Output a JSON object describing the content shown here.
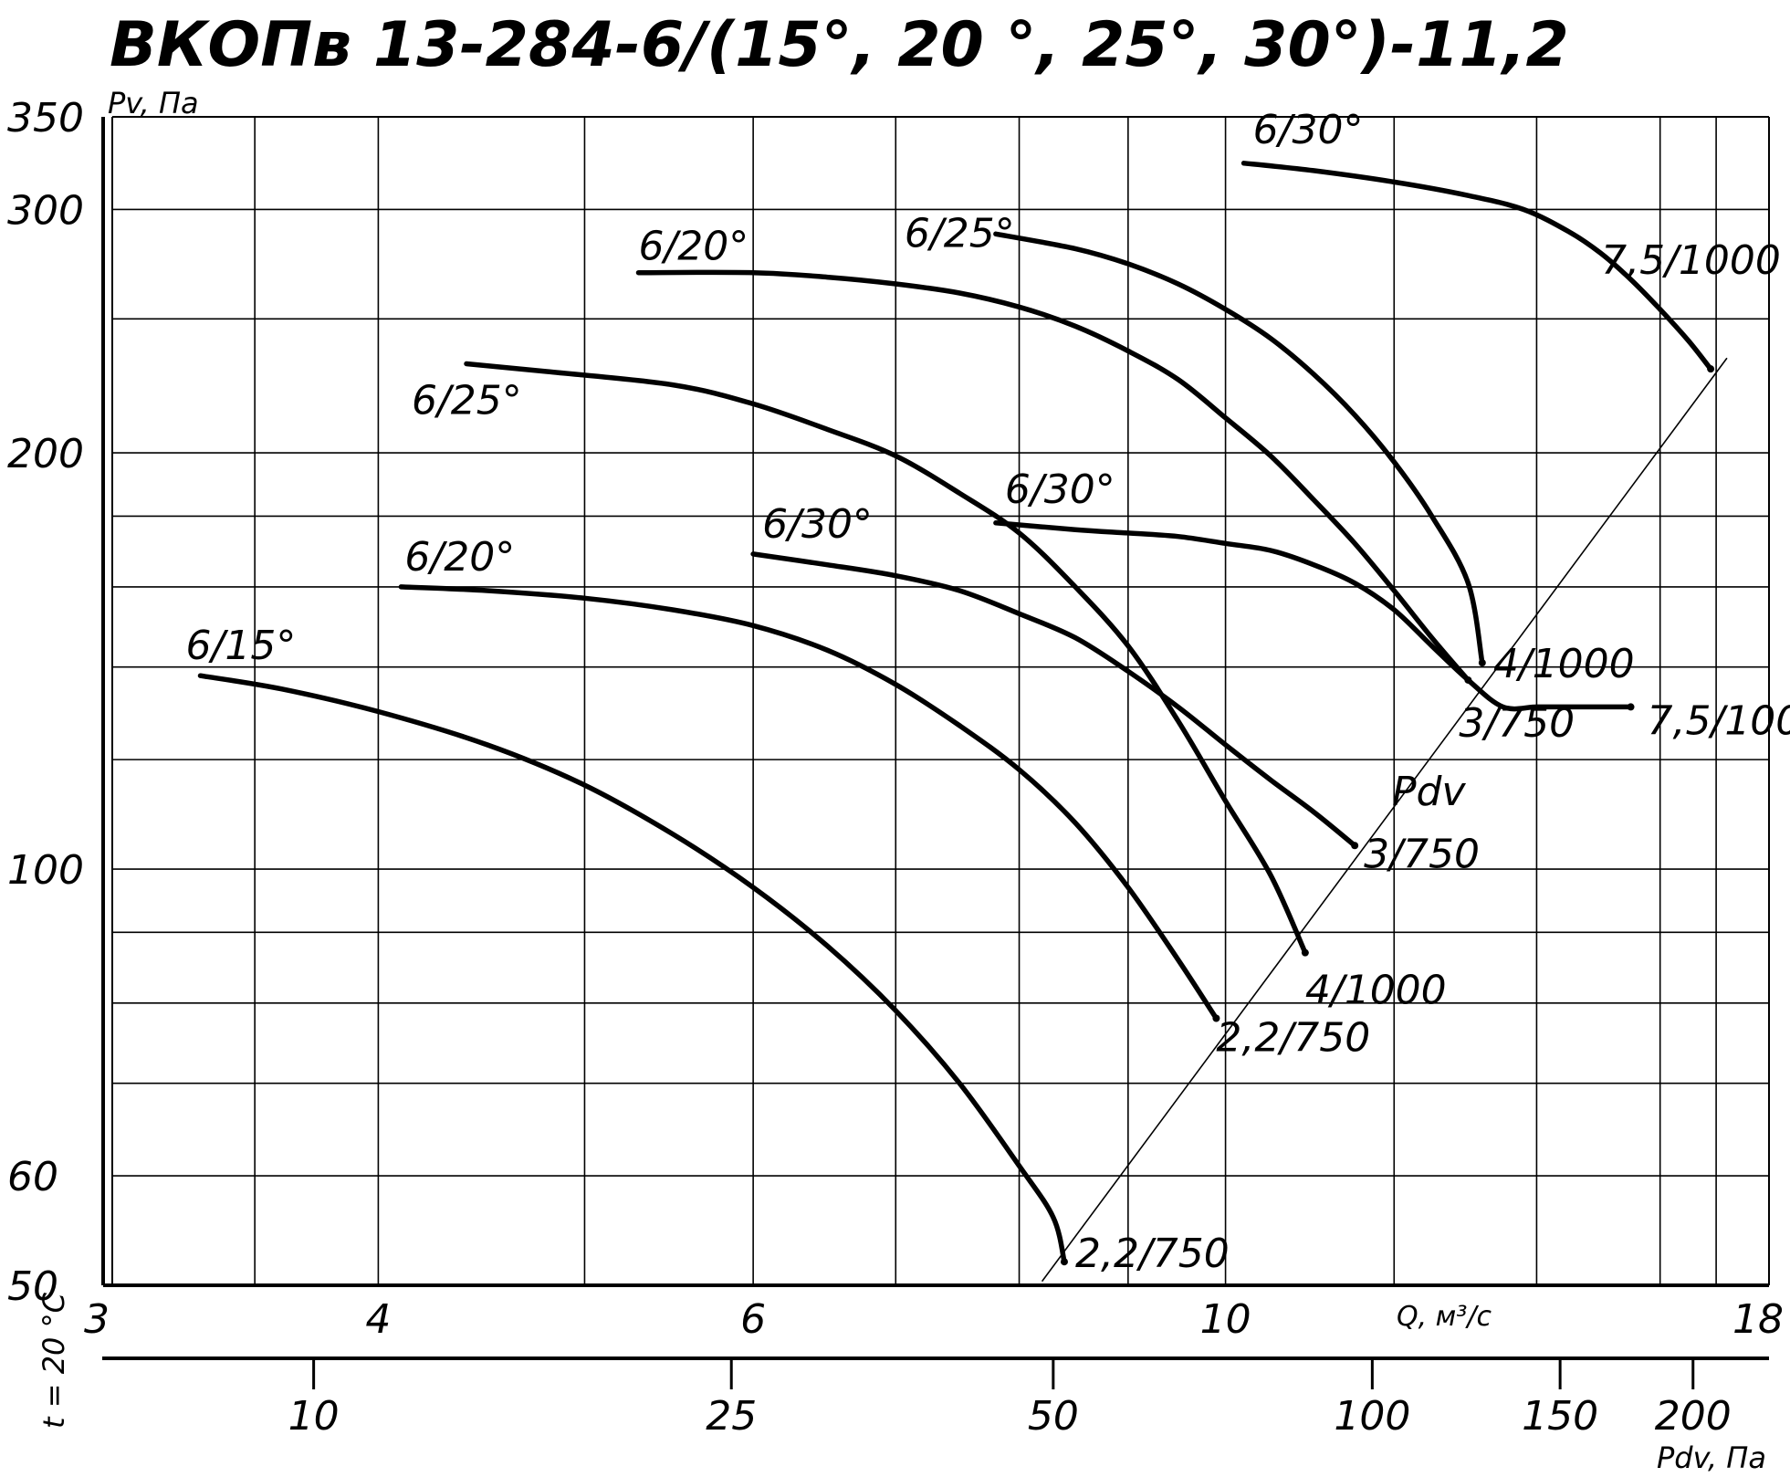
{
  "chart_data": {
    "type": "line",
    "title": "ВКОПв 13-284-6/(15°, 20 °, 25°, 30°)-11,2",
    "ylabel": "Pv, Па",
    "xlabel": "Q, м³/с",
    "x2label": "Pdv, Па",
    "side_label": "t = 20 °C",
    "x_scale": "log",
    "y_scale": "log",
    "xlim": [
      3,
      18
    ],
    "ylim": [
      50,
      350
    ],
    "grid": true,
    "x_ticks": [
      3,
      4,
      6,
      10,
      18
    ],
    "x_tick_labels": [
      "3",
      "4",
      "6",
      "10",
      "18"
    ],
    "x_minor_ticks": [
      3.5,
      5,
      7,
      8,
      9,
      12,
      14,
      16,
      17
    ],
    "y_ticks": [
      50,
      60,
      100,
      200,
      300,
      350
    ],
    "y_tick_labels": [
      "50",
      "60",
      "100",
      "200",
      "300",
      "350"
    ],
    "y_minor_ticks": [
      70,
      80,
      90,
      120,
      140,
      160,
      180,
      250
    ],
    "x2_ticks": [
      10,
      25,
      50,
      100,
      150,
      200
    ],
    "x2_tick_labels": [
      "10",
      "25",
      "50",
      "100",
      "150",
      "200"
    ],
    "x2_positions_q": [
      3.73,
      5.86,
      8.3,
      11.72,
      14.36,
      16.58
    ],
    "pdv_line_label": "Pdv",
    "series": [
      {
        "name": "6/15°",
        "group": "lower",
        "end_label": "2,2/750",
        "x": [
          3.3,
          3.6,
          4.0,
          4.5,
          5.0,
          5.5,
          6.0,
          6.5,
          7.0,
          7.5,
          8.0,
          8.3,
          8.4
        ],
        "y": [
          138,
          135,
          130,
          123,
          115,
          106,
          97,
          88,
          79,
          70,
          61,
          56,
          52
        ]
      },
      {
        "name": "6/20°",
        "group": "lower",
        "end_label": "2,2/750",
        "x": [
          4.1,
          4.5,
          5.0,
          5.5,
          6.0,
          6.5,
          7.0,
          7.5,
          8.0,
          8.5,
          9.0,
          9.5,
          9.9
        ],
        "y": [
          160,
          159,
          157,
          154,
          150,
          144,
          136,
          127,
          118,
          108,
          97,
          86,
          78
        ]
      },
      {
        "name": "6/25°",
        "group": "lower",
        "end_label": "4/1000",
        "x": [
          4.4,
          4.8,
          5.5,
          6.0,
          6.5,
          7.0,
          7.5,
          8.0,
          8.5,
          9.0,
          9.5,
          10.0,
          10.5,
          10.9
        ],
        "y": [
          232,
          229,
          224,
          217,
          208,
          199,
          187,
          175,
          160,
          145,
          128,
          112,
          99,
          87
        ]
      },
      {
        "name": "6/30°",
        "group": "lower",
        "end_label": "3/750",
        "x": [
          6.0,
          6.5,
          7.0,
          7.5,
          8.0,
          8.5,
          9.0,
          9.5,
          10.0,
          10.5,
          11.0,
          11.5
        ],
        "y": [
          169,
          166,
          163,
          159,
          153,
          147,
          139,
          131,
          123,
          116,
          110,
          104
        ]
      },
      {
        "name": "6/20°",
        "group": "upper",
        "end_label": "3/750",
        "x": [
          5.3,
          6.0,
          6.5,
          7.0,
          7.5,
          8.0,
          8.5,
          9.0,
          9.5,
          10.0,
          10.5,
          11.0,
          11.5,
          12.0,
          12.5,
          13.0
        ],
        "y": [
          270,
          270,
          268,
          265,
          261,
          255,
          247,
          237,
          226,
          212,
          199,
          185,
          172,
          159,
          147,
          137
        ]
      },
      {
        "name": "6/25°",
        "group": "upper",
        "end_label": "4/1000",
        "x": [
          7.8,
          8.5,
          9.0,
          9.5,
          10.0,
          10.5,
          11.0,
          11.5,
          12.0,
          12.5,
          13.0,
          13.2
        ],
        "y": [
          288,
          281,
          274,
          265,
          254,
          242,
          228,
          213,
          197,
          180,
          161,
          141
        ]
      },
      {
        "name": "6/30°",
        "group": "upper",
        "end_label": "7,5/1000",
        "x": [
          7.8,
          8.5,
          9.0,
          9.5,
          10.0,
          10.5,
          11.0,
          11.5,
          12.0,
          12.5,
          13.0,
          13.5,
          14.0,
          14.5,
          15.0,
          15.5
        ],
        "y": [
          178,
          176,
          175,
          174,
          172,
          170,
          166,
          161,
          154,
          145,
          137,
          131,
          131,
          131,
          131,
          131
        ]
      },
      {
        "name": "6/30°",
        "group": "top",
        "end_label": "7,5/1000",
        "x": [
          10.2,
          11.0,
          12.0,
          13.0,
          13.8,
          14.5,
          15.0,
          15.5,
          16.0,
          16.5,
          16.9
        ],
        "y": [
          324,
          320,
          314,
          307,
          300,
          289,
          279,
          267,
          254,
          241,
          230
        ]
      }
    ]
  }
}
